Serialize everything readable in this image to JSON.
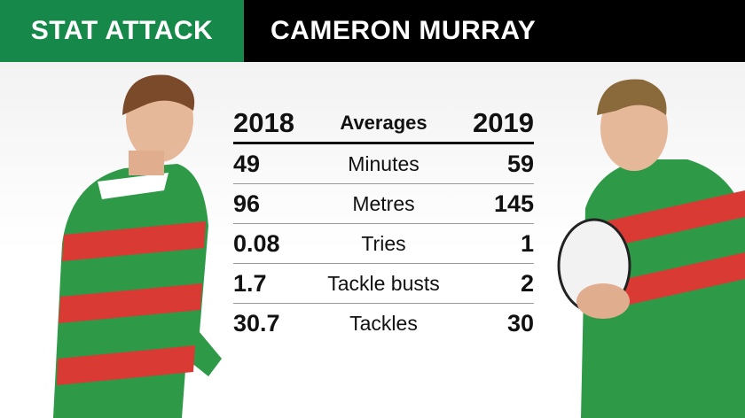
{
  "header": {
    "title": "STAT ATTACK",
    "subtitle": "CAMERON MURRAY"
  },
  "table": {
    "columns": [
      "2018",
      "Averages",
      "2019"
    ],
    "rows": [
      [
        "49",
        "Minutes",
        "59"
      ],
      [
        "96",
        "Metres",
        "145"
      ],
      [
        "0.08",
        "Tries",
        "1"
      ],
      [
        "1.7",
        "Tackle busts",
        "2"
      ],
      [
        "30.7",
        "Tackles",
        "30"
      ]
    ]
  }
}
